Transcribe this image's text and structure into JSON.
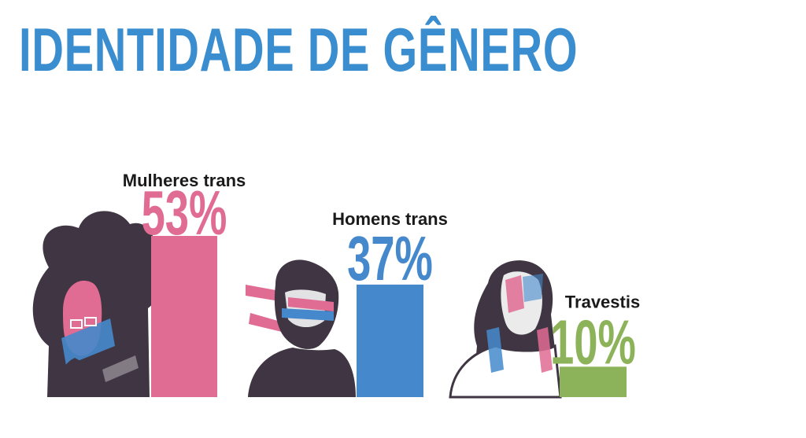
{
  "title": "IDENTIDADE DE GÊNERO",
  "chart_data": {
    "type": "bar",
    "title": "IDENTIDADE DE GÊNERO",
    "xlabel": "",
    "ylabel": "",
    "unit": "%",
    "ylim": [
      0,
      53
    ],
    "grid": false,
    "categories": [
      "Mulheres trans",
      "Homens trans",
      "Travestis"
    ],
    "values": [
      53,
      37,
      10
    ],
    "value_labels": [
      "53%",
      "37%",
      "10%"
    ],
    "colors": [
      "#e06b93",
      "#4589cc",
      "#8db35a"
    ]
  },
  "illustrations": [
    {
      "icon": "portrait-woman-afro-glasses-icon"
    },
    {
      "icon": "portrait-man-short-hair-icon"
    },
    {
      "icon": "portrait-woman-long-hair-icon"
    }
  ],
  "palette": {
    "title": "#3a8ed0",
    "ink": "#3f3543",
    "pink": "#e06b93",
    "blue": "#4589cc",
    "green": "#8db35a"
  }
}
